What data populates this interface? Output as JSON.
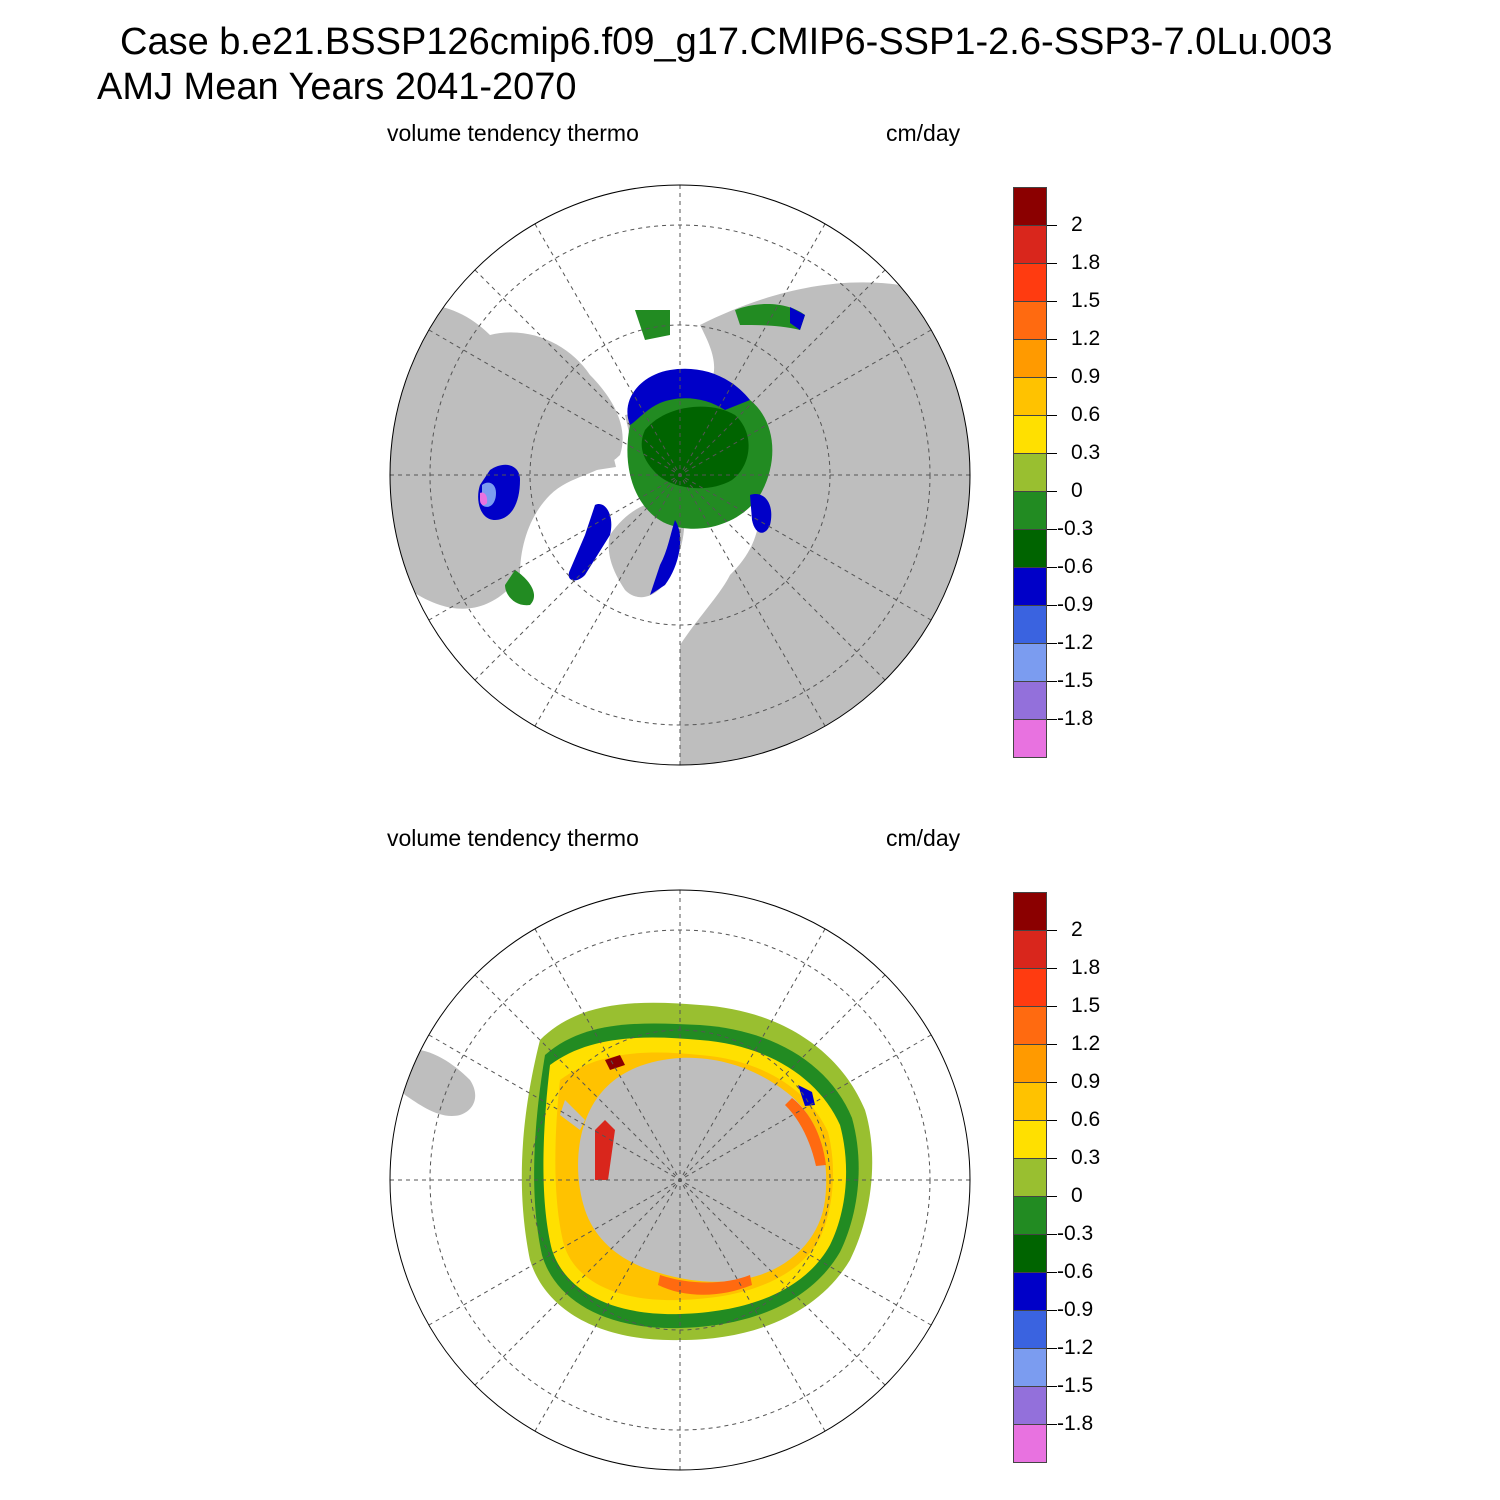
{
  "title": {
    "line1": "Case b.e21.BSSP126cmip6.f09_g17.CMIP6-SSP1-2.6-SSP3-7.0Lu.003",
    "line2": "AMJ Mean   Years 2041-2070"
  },
  "panels": [
    {
      "id": "north",
      "variable": "volume tendency thermo",
      "units": "cm/day",
      "hemisphere": "Northern",
      "dominant_sea_ice_values_cm_per_day": [
        -0.3,
        -0.6,
        -0.9,
        -1.2
      ]
    },
    {
      "id": "south",
      "variable": "volume tendency thermo",
      "units": "cm/day",
      "hemisphere": "Southern",
      "dominant_sea_ice_values_cm_per_day": [
        0,
        0.3,
        0.6,
        0.9,
        1.5,
        2
      ]
    }
  ],
  "colorbar": {
    "labels": [
      "2",
      "1.8",
      "1.5",
      "1.2",
      "0.9",
      "0.6",
      "0.3",
      "0",
      "-0.3",
      "-0.6",
      "-0.9",
      "-1.2",
      "-1.5",
      "-1.8"
    ],
    "colors": [
      "#8b0000",
      "#d9261c",
      "#ff3b10",
      "#ff6a10",
      "#ff9a00",
      "#ffc200",
      "#ffe000",
      "#99bf30",
      "#228b22",
      "#006400",
      "#0000c8",
      "#3a63e0",
      "#7b9cf0",
      "#9370db",
      "#e872e0"
    ]
  },
  "map_colors": {
    "land": "#bebebe",
    "ocean": "#ffffff",
    "grid": "#555555"
  }
}
